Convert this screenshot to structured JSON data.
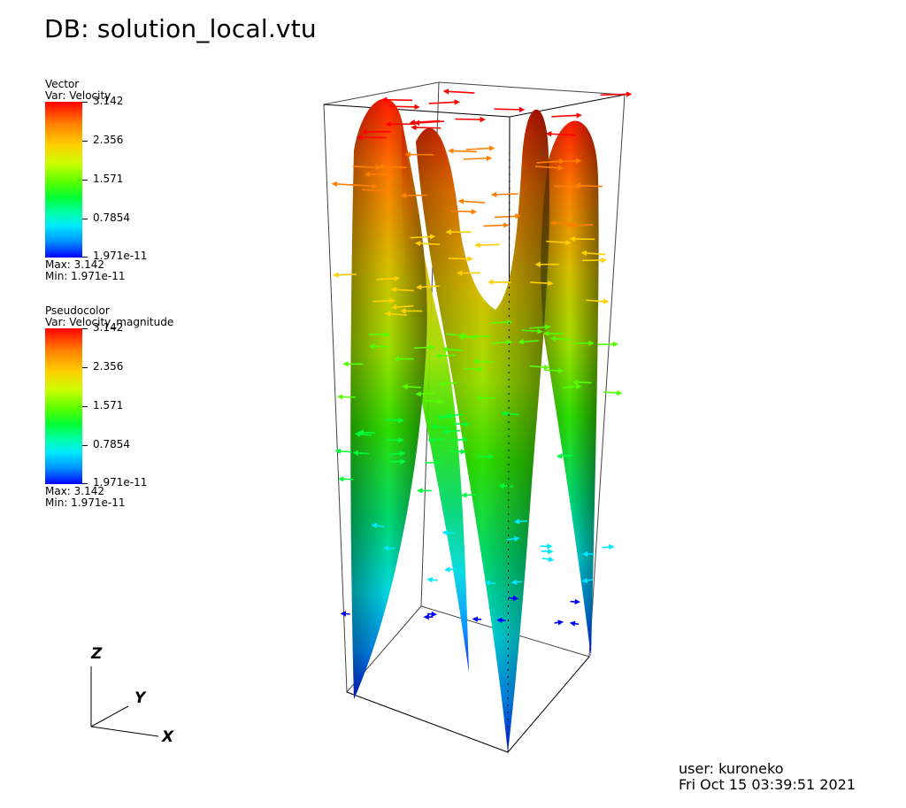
{
  "db_title": "DB: solution_local.vtu",
  "legends": [
    {
      "plot_type": "Vector",
      "variable": "Var: Velocity",
      "ticks": [
        "3.142",
        "2.356",
        "1.571",
        "0.7854",
        "1.971e-11"
      ],
      "max": "Max:  3.142",
      "min": "Min:  1.971e-11"
    },
    {
      "plot_type": "Pseudocolor",
      "variable": "Var: Velocity_magnitude",
      "ticks": [
        "3.142",
        "2.356",
        "1.571",
        "0.7854",
        "1.971e-11"
      ],
      "max": "Max:  3.142",
      "min": "Min:  1.971e-11"
    }
  ],
  "colormap": [
    "#0000ff",
    "#00e8ff",
    "#00ff3a",
    "#55ff00",
    "#ffd100",
    "#ff7f00",
    "#ff0000"
  ],
  "axes": {
    "x": "X",
    "y": "Y",
    "z": "Z"
  },
  "user_info": {
    "user": "user: kuroneko",
    "timestamp": "Fri Oct 15 03:39:51 2021"
  }
}
